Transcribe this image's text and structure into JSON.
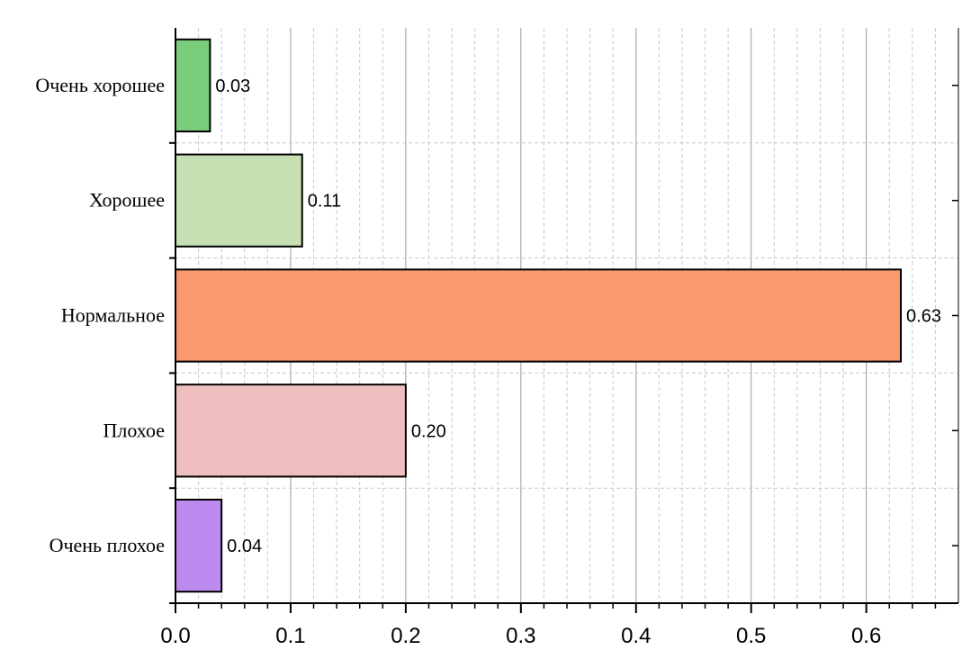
{
  "chart_data": {
    "type": "bar",
    "orientation": "horizontal",
    "categories": [
      "Очень хорошее",
      "Хорошее",
      "Нормальное",
      "Плохое",
      "Очень плохое"
    ],
    "values": [
      0.03,
      0.11,
      0.63,
      0.2,
      0.04
    ],
    "value_labels": [
      "0.03",
      "0.11",
      "0.63",
      "0.20",
      "0.04"
    ],
    "colors": [
      "#7acd7a",
      "#c6e0b4",
      "#f9996f",
      "#efbfbf",
      "#bd8bef"
    ],
    "xlim": [
      0,
      0.68
    ],
    "x_ticks": [
      0.0,
      0.1,
      0.2,
      0.3,
      0.4,
      0.5,
      0.6
    ],
    "x_tick_labels": [
      "0.0",
      "0.1",
      "0.2",
      "0.3",
      "0.4",
      "0.5",
      "0.6"
    ],
    "grid": true,
    "title": "",
    "xlabel": "",
    "ylabel": ""
  }
}
